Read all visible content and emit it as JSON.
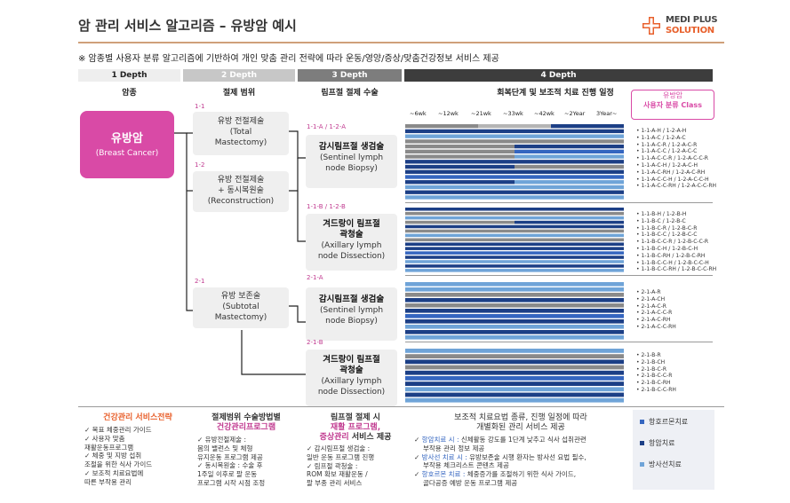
{
  "title": "암 관리 서비스 알고리즘 – 유방암  예시",
  "logo": {
    "line1": "MEDI PLUS",
    "line2": "SOLUTION"
  },
  "intro": "※ 암종별 사용자 분류 알고리즘에 기반하여 개인 맞춤 관리 전략에 따라 운동/영양/증상/맞춤건강정보 서비스 제공",
  "headers": [
    "1 Depth",
    "2 Depth",
    "3 Depth",
    "4 Depth"
  ],
  "col_headers": [
    "암종",
    "절제 범위",
    "림프절 절제 수술",
    "회복단계 및 보조적 치료 진행 일정"
  ],
  "cancer": {
    "name": "유방암",
    "sub": "(Breast Cancer)"
  },
  "depth2": [
    {
      "tag": "1-1",
      "lines": [
        "유방 전절제술",
        "(Total",
        "Mastectomy)"
      ]
    },
    {
      "tag": "1-2",
      "lines": [
        "유방  전절제술",
        "+ 동시복원술",
        "(Reconstruction)"
      ]
    },
    {
      "tag": "2-1",
      "lines": [
        "유방 보존술",
        "(Subtotal",
        "Mastectomy)"
      ]
    }
  ],
  "depth3": [
    {
      "tag": "1-1-A / 1-2-A",
      "title": "감시림프절 생검술",
      "lines": [
        "(Sentinel lymph",
        "node Biopsy)"
      ]
    },
    {
      "tag": "1-1-B / 1-2-B",
      "title": "겨드랑이 림프절",
      "title2": "곽청술",
      "lines": [
        "(Axillary lymph",
        "node Dissection)"
      ]
    },
    {
      "tag": "2-1-A",
      "title": "감시림프절 생검술",
      "lines": [
        "(Sentinel lymph",
        "node Biopsy)"
      ]
    },
    {
      "tag": "2-1-B",
      "title": "겨드랑이 림프절",
      "title2": "곽청술",
      "lines": [
        "(Axillary lymph",
        "node Dissection)"
      ]
    }
  ],
  "class_box": {
    "line1": "유방암",
    "line2": "사용자 분류 Class"
  },
  "weeks": [
    "~6wk",
    "~12wk",
    "~21wk",
    "~33wk",
    "~42wk",
    "~2Year",
    "3Year~"
  ],
  "class_lists": [
    [
      "1-1-A-H / 1-2-A-H",
      "1-1-A-C / 1-2-A-C",
      "1-1-A-C-R / 1-2-A-C-R",
      "1-1-A-C-C / 1-2-A-C-C",
      "1-1-A-C-C-R / 1-2-A-C-C-R",
      "1-1-A-C-H / 1-2-A-C-H",
      "1-1-A-C-RH / 1-2-A-C-RH",
      "1-1-A-C-C-H / 1-2-A-C-C-H",
      "1-1-A-C-C-RH / 1-2-A-C-C-RH"
    ],
    [
      "1-1-B-H / 1-2-B-H",
      "1-1-B-C / 1-2-B-C",
      "1-1-B-C-R / 1-2-B-C-R",
      "1-1-B-C-C / 1-2-B-C-C",
      "1-1-B-C-C-R / 1-2-B-C-C-R",
      "1-1-B-C-H / 1-2-B-C-H",
      "1-1-B-C-RH / 1-2-B-C-RH",
      "1-1-B-C-C-H / 1-2-B-C-C-H",
      "1-1-B-C-C-RH / 1-2-B-C-C-RH"
    ],
    [
      "2-1-A-R",
      "2-1-A-CH",
      "2-1-A-C-R",
      "2-1-A-C-C-R",
      "2-1-A-C-RH",
      "2-1-A-C-C-RH"
    ],
    [
      "2-1-B-R",
      "2-1-B-CH",
      "2-1-B-C-R",
      "2-1-B-C-C-R",
      "2-1-B-C-RH",
      "2-1-B-C-C-RH"
    ]
  ],
  "footer": {
    "col1": {
      "head": "건강관리 서비스전략",
      "lines": [
        "✓  목표 체중관리 가이드",
        "✓  사용자 맞춤",
        "    재활운동프로그램",
        "✓  체중 및 지방 섭취",
        "    조절을 위한 식사 가이드",
        "✓  보조적 치료요법에",
        "    따른 부작용 관리"
      ]
    },
    "col2": {
      "head1": "절제범위 수술방법별",
      "head2": "건강관리프로그램",
      "lines": [
        "✓  유방전절제술 :",
        "    몸의 밸런스 및 체형",
        "    유지운동 프로그램 제공",
        "✓  동시복원술 : 수술 후",
        "    1주일 이후로 팔 운동",
        "    프로그램 시작 시점 조정"
      ]
    },
    "col3": {
      "head1": "림프절 절제 시",
      "head2": "재활 프로그램,",
      "head3": "증상관리",
      "head3b": " 서비스 제공",
      "lines": [
        "✓  감시림프절 생검술 :",
        "    일반 운동 프로그램 진행",
        "✓  림프절 곽청술 :",
        "    ROM 확보 재활운동 /",
        "    팔 부종 관리 서비스"
      ]
    },
    "col4": {
      "head1": "보조적 치료요법 종류, 진행 일정에 따라",
      "head2": "개별화된 관리 서비스 제공",
      "items": [
        {
          "key": "항암치료 시 :",
          "text": " 신체활동 강도를 1단계 낮추고 식사 섭취관련",
          "cont": "부작용 관리 정보 제공"
        },
        {
          "key": "방사선 치료 시 :",
          "text": " 유방보존술 시행 환자는 방사선 요법 필수,",
          "cont": "부작용 체크리스트 콘텐츠 제공"
        },
        {
          "key": "항호르몬 치료 :",
          "text": " 체중증가를 조절하기 위한 식사 가이드,",
          "cont": "골다공증 예방 운동 프로그램 제공"
        }
      ]
    }
  },
  "legend": [
    "항호르몬치료",
    "항암치료",
    "방사선치료"
  ],
  "colors": {
    "pink": "#d94aa6",
    "orange": "#e8602c",
    "navy": "#1c3f86",
    "blue": "#3566c0",
    "lightblue": "#6fa4d8",
    "gray": "#8a8a8a",
    "darkgray": "#555555",
    "lightgray": "#b5b5b5"
  },
  "chart_data": {
    "type": "gantt",
    "groups": [
      {
        "rows": [
          "gray-lightgray-navy",
          "navy",
          "lightblue",
          "gray",
          "gray-navy",
          "gray-blue",
          "gray-lightblue",
          "navy",
          "navy-gray",
          "navy",
          "blue",
          "navy-lightblue",
          "lightblue",
          "navy",
          "lightblue"
        ]
      },
      {
        "rows": [
          "navy",
          "gray",
          "lightblue",
          "gray-navy",
          "navy",
          "gray",
          "lightblue",
          "gray",
          "navy",
          "navy",
          "blue",
          "navy",
          "lightblue",
          "navy",
          "lightblue"
        ]
      },
      {
        "rows": [
          "lightblue",
          "lightblue",
          "gray",
          "navy",
          "gray",
          "navy",
          "blue",
          "navy",
          "lightblue",
          "navy",
          "lightblue"
        ]
      },
      {
        "rows": [
          "lightblue",
          "gray",
          "navy",
          "gray",
          "navy",
          "blue",
          "navy",
          "lightblue",
          "navy",
          "lightblue"
        ]
      }
    ]
  }
}
